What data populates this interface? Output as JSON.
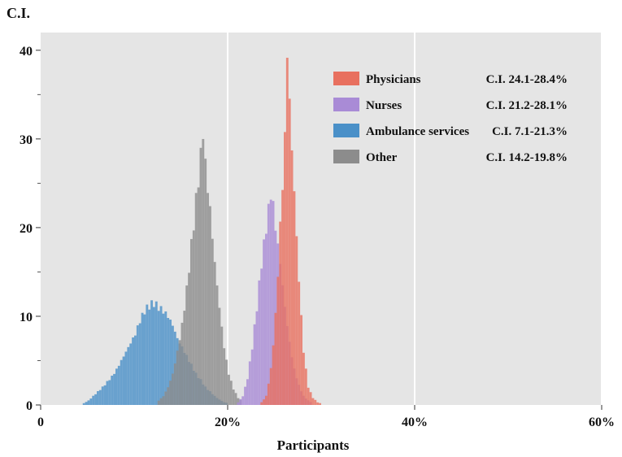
{
  "chart_data": {
    "type": "histogram",
    "ylabel": "C.I.",
    "xlabel": "Participants",
    "xlim": [
      0,
      60
    ],
    "ylim": [
      0,
      42
    ],
    "x_ticks": [
      {
        "value": 0,
        "label": "0"
      },
      {
        "value": 20,
        "label": "20%"
      },
      {
        "value": 40,
        "label": "40%"
      },
      {
        "value": 60,
        "label": "60%"
      }
    ],
    "y_ticks": [
      {
        "value": 0,
        "label": "0"
      },
      {
        "value": 10,
        "label": "10"
      },
      {
        "value": 20,
        "label": "20"
      },
      {
        "value": 30,
        "label": "30"
      },
      {
        "value": 40,
        "label": "40"
      }
    ],
    "grid": true,
    "legend_position": "top-right",
    "bin_width": 0.25,
    "series": [
      {
        "name": "Ambulance services",
        "ci": "C.I. 7.1-21.3%",
        "color": "#4a90c8",
        "bins": [
          [
            4.5,
            0.2
          ],
          [
            5.0,
            0.5
          ],
          [
            5.5,
            1
          ],
          [
            6.0,
            1.5
          ],
          [
            6.5,
            2
          ],
          [
            7.0,
            2.6
          ],
          [
            7.5,
            3.2
          ],
          [
            8.0,
            4
          ],
          [
            8.5,
            5
          ],
          [
            9.0,
            6
          ],
          [
            9.5,
            7
          ],
          [
            10.0,
            8
          ],
          [
            10.5,
            9.5
          ],
          [
            11.0,
            10.6
          ],
          [
            11.5,
            11.2
          ],
          [
            12.0,
            11.5
          ],
          [
            12.5,
            11
          ],
          [
            13.0,
            10.6
          ],
          [
            13.5,
            10
          ],
          [
            14.0,
            9
          ],
          [
            14.5,
            7.5
          ],
          [
            15.0,
            6.5
          ],
          [
            15.5,
            5.5
          ],
          [
            16.0,
            4.5
          ],
          [
            16.5,
            3.5
          ],
          [
            17.0,
            2.8
          ],
          [
            17.5,
            2
          ],
          [
            18.0,
            1.5
          ],
          [
            18.5,
            1
          ],
          [
            19.0,
            0.6
          ],
          [
            19.5,
            0.3
          ],
          [
            20.0,
            0.2
          ]
        ]
      },
      {
        "name": "Other",
        "ci": "C.I. 14.2-19.8%",
        "color": "#8c8c8c",
        "bins": [
          [
            12.5,
            0.5
          ],
          [
            13.0,
            1
          ],
          [
            13.5,
            2
          ],
          [
            14.0,
            3.5
          ],
          [
            14.5,
            6
          ],
          [
            15.0,
            9
          ],
          [
            15.5,
            13
          ],
          [
            16.0,
            18
          ],
          [
            16.5,
            23
          ],
          [
            17.0,
            28
          ],
          [
            17.25,
            31
          ],
          [
            17.5,
            27
          ],
          [
            18.0,
            22
          ],
          [
            18.5,
            16
          ],
          [
            19.0,
            11
          ],
          [
            19.5,
            6.5
          ],
          [
            20.0,
            3.5
          ],
          [
            20.5,
            1.8
          ],
          [
            21.0,
            0.8
          ],
          [
            21.5,
            0.3
          ]
        ]
      },
      {
        "name": "Nurses",
        "ci": "C.I. 21.2-28.1%",
        "color": "#a98bd6",
        "bins": [
          [
            21.0,
            0.3
          ],
          [
            21.5,
            1
          ],
          [
            22.0,
            3
          ],
          [
            22.5,
            6.5
          ],
          [
            23.0,
            11
          ],
          [
            23.5,
            16
          ],
          [
            24.0,
            20
          ],
          [
            24.25,
            22
          ],
          [
            24.5,
            23.8
          ],
          [
            24.75,
            22.5
          ],
          [
            25.0,
            20
          ],
          [
            25.5,
            16
          ],
          [
            26.0,
            11
          ],
          [
            26.5,
            7
          ],
          [
            27.0,
            4
          ],
          [
            27.5,
            2.2
          ],
          [
            28.0,
            1
          ],
          [
            28.5,
            0.5
          ],
          [
            29.0,
            0.2
          ]
        ]
      },
      {
        "name": "Physicians",
        "ci": "C.I. 24.1-28.4%",
        "color": "#e8705f",
        "bins": [
          [
            23.5,
            0.3
          ],
          [
            24.0,
            1
          ],
          [
            24.5,
            4
          ],
          [
            25.0,
            10
          ],
          [
            25.5,
            20
          ],
          [
            26.0,
            30
          ],
          [
            26.25,
            40
          ],
          [
            26.5,
            34
          ],
          [
            27.0,
            24
          ],
          [
            27.5,
            14
          ],
          [
            28.0,
            6
          ],
          [
            28.5,
            2
          ],
          [
            29.0,
            0.8
          ],
          [
            29.5,
            0.3
          ],
          [
            30.0,
            0.1
          ]
        ]
      }
    ]
  }
}
